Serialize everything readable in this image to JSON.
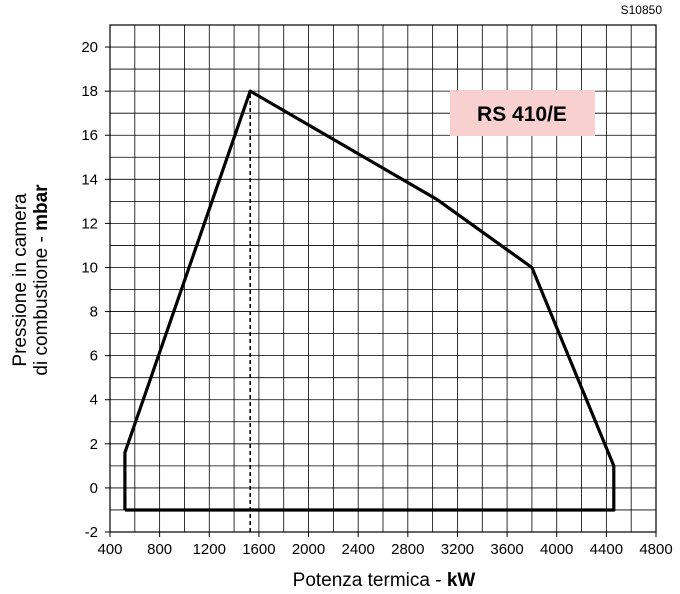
{
  "figure_code": "S10850",
  "chart_data": {
    "type": "line",
    "title": "",
    "model_label": "RS 410/E",
    "model_label_color": "#f8d0d0",
    "xlabel": {
      "text": "Potenza termica - ",
      "unit": "kW"
    },
    "ylabel": {
      "line1": "Pressione in camera",
      "line2": "di combustione - ",
      "unit": "mbar"
    },
    "xlim": [
      400,
      4800
    ],
    "ylim": [
      -2,
      21
    ],
    "x_ticks": [
      400,
      800,
      1200,
      1600,
      2000,
      2400,
      2800,
      3200,
      3600,
      4000,
      4400,
      4800
    ],
    "y_ticks": [
      -2,
      0,
      2,
      4,
      6,
      8,
      10,
      12,
      14,
      16,
      18,
      20
    ],
    "grid": true,
    "grid_minor_x": 200,
    "grid_minor_y": 1,
    "series": [
      {
        "points": [
          [
            520,
            -1
          ],
          [
            520,
            1.6
          ],
          [
            1530,
            18
          ],
          [
            3030,
            13.1
          ],
          [
            3800,
            10
          ],
          [
            4460,
            1
          ],
          [
            4460,
            -1
          ],
          [
            520,
            -1
          ]
        ],
        "color": "#000000"
      }
    ],
    "reference_lines": [
      {
        "x": 1530,
        "y_from": -2,
        "y_to": 18,
        "style": "dashed"
      }
    ]
  }
}
